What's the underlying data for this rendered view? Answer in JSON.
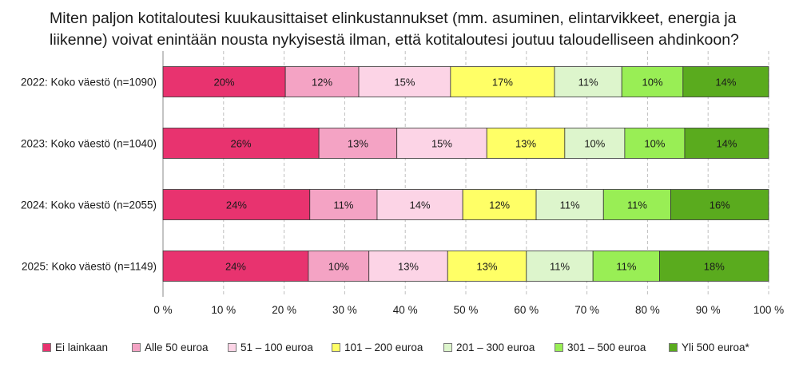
{
  "chart_data": {
    "type": "bar",
    "orientation": "horizontal",
    "stacked": true,
    "title": "Miten paljon kotitaloutesi kuukausittaiset elinkustannukset (mm. asuminen, elintarvikkeet, energia ja liikenne) voivat enintään nousta nykyisestä ilman, että kotitaloutesi joutuu taloudelliseen ahdinkoon?",
    "categories": [
      "2022: Koko väestö (n=1090)",
      "2023: Koko väestö (n=1040)",
      "2024: Koko väestö (n=2055)",
      "2025: Koko väestö (n=1149)"
    ],
    "series": [
      {
        "name": "Ei lainkaan",
        "color": "#e8336f",
        "values": [
          20,
          26,
          24,
          24
        ]
      },
      {
        "name": "Alle 50 euroa",
        "color": "#f4a3c4",
        "values": [
          12,
          13,
          11,
          10
        ]
      },
      {
        "name": "51 – 100 euroa",
        "color": "#fcd4e6",
        "values": [
          15,
          15,
          14,
          13
        ]
      },
      {
        "name": "101 – 200 euroa",
        "color": "#ffff66",
        "values": [
          17,
          13,
          12,
          13
        ]
      },
      {
        "name": "201 – 300 euroa",
        "color": "#ddf5cc",
        "values": [
          11,
          10,
          11,
          11
        ]
      },
      {
        "name": "301 – 500 euroa",
        "color": "#99ee55",
        "values": [
          10,
          10,
          11,
          11
        ]
      },
      {
        "name": "Yli 500 euroa*",
        "color": "#5aab1e",
        "values": [
          14,
          14,
          16,
          18
        ]
      }
    ],
    "data_labels": [
      [
        "20%",
        "12%",
        "15%",
        "17%",
        "11%",
        "10%",
        "14%"
      ],
      [
        "26%",
        "13%",
        "15%",
        "13%",
        "10%",
        "10%",
        "14%"
      ],
      [
        "24%",
        "11%",
        "14%",
        "12%",
        "11%",
        "11%",
        "16%"
      ],
      [
        "24%",
        "10%",
        "13%",
        "13%",
        "11%",
        "11%",
        "18%"
      ]
    ],
    "xlim": [
      0,
      100
    ],
    "x_ticks": [
      "0 %",
      "10 %",
      "20 %",
      "30 %",
      "40 %",
      "50 %",
      "60 %",
      "70 %",
      "80 %",
      "90 %",
      "100 %"
    ],
    "grid": true,
    "legend_position": "bottom"
  }
}
